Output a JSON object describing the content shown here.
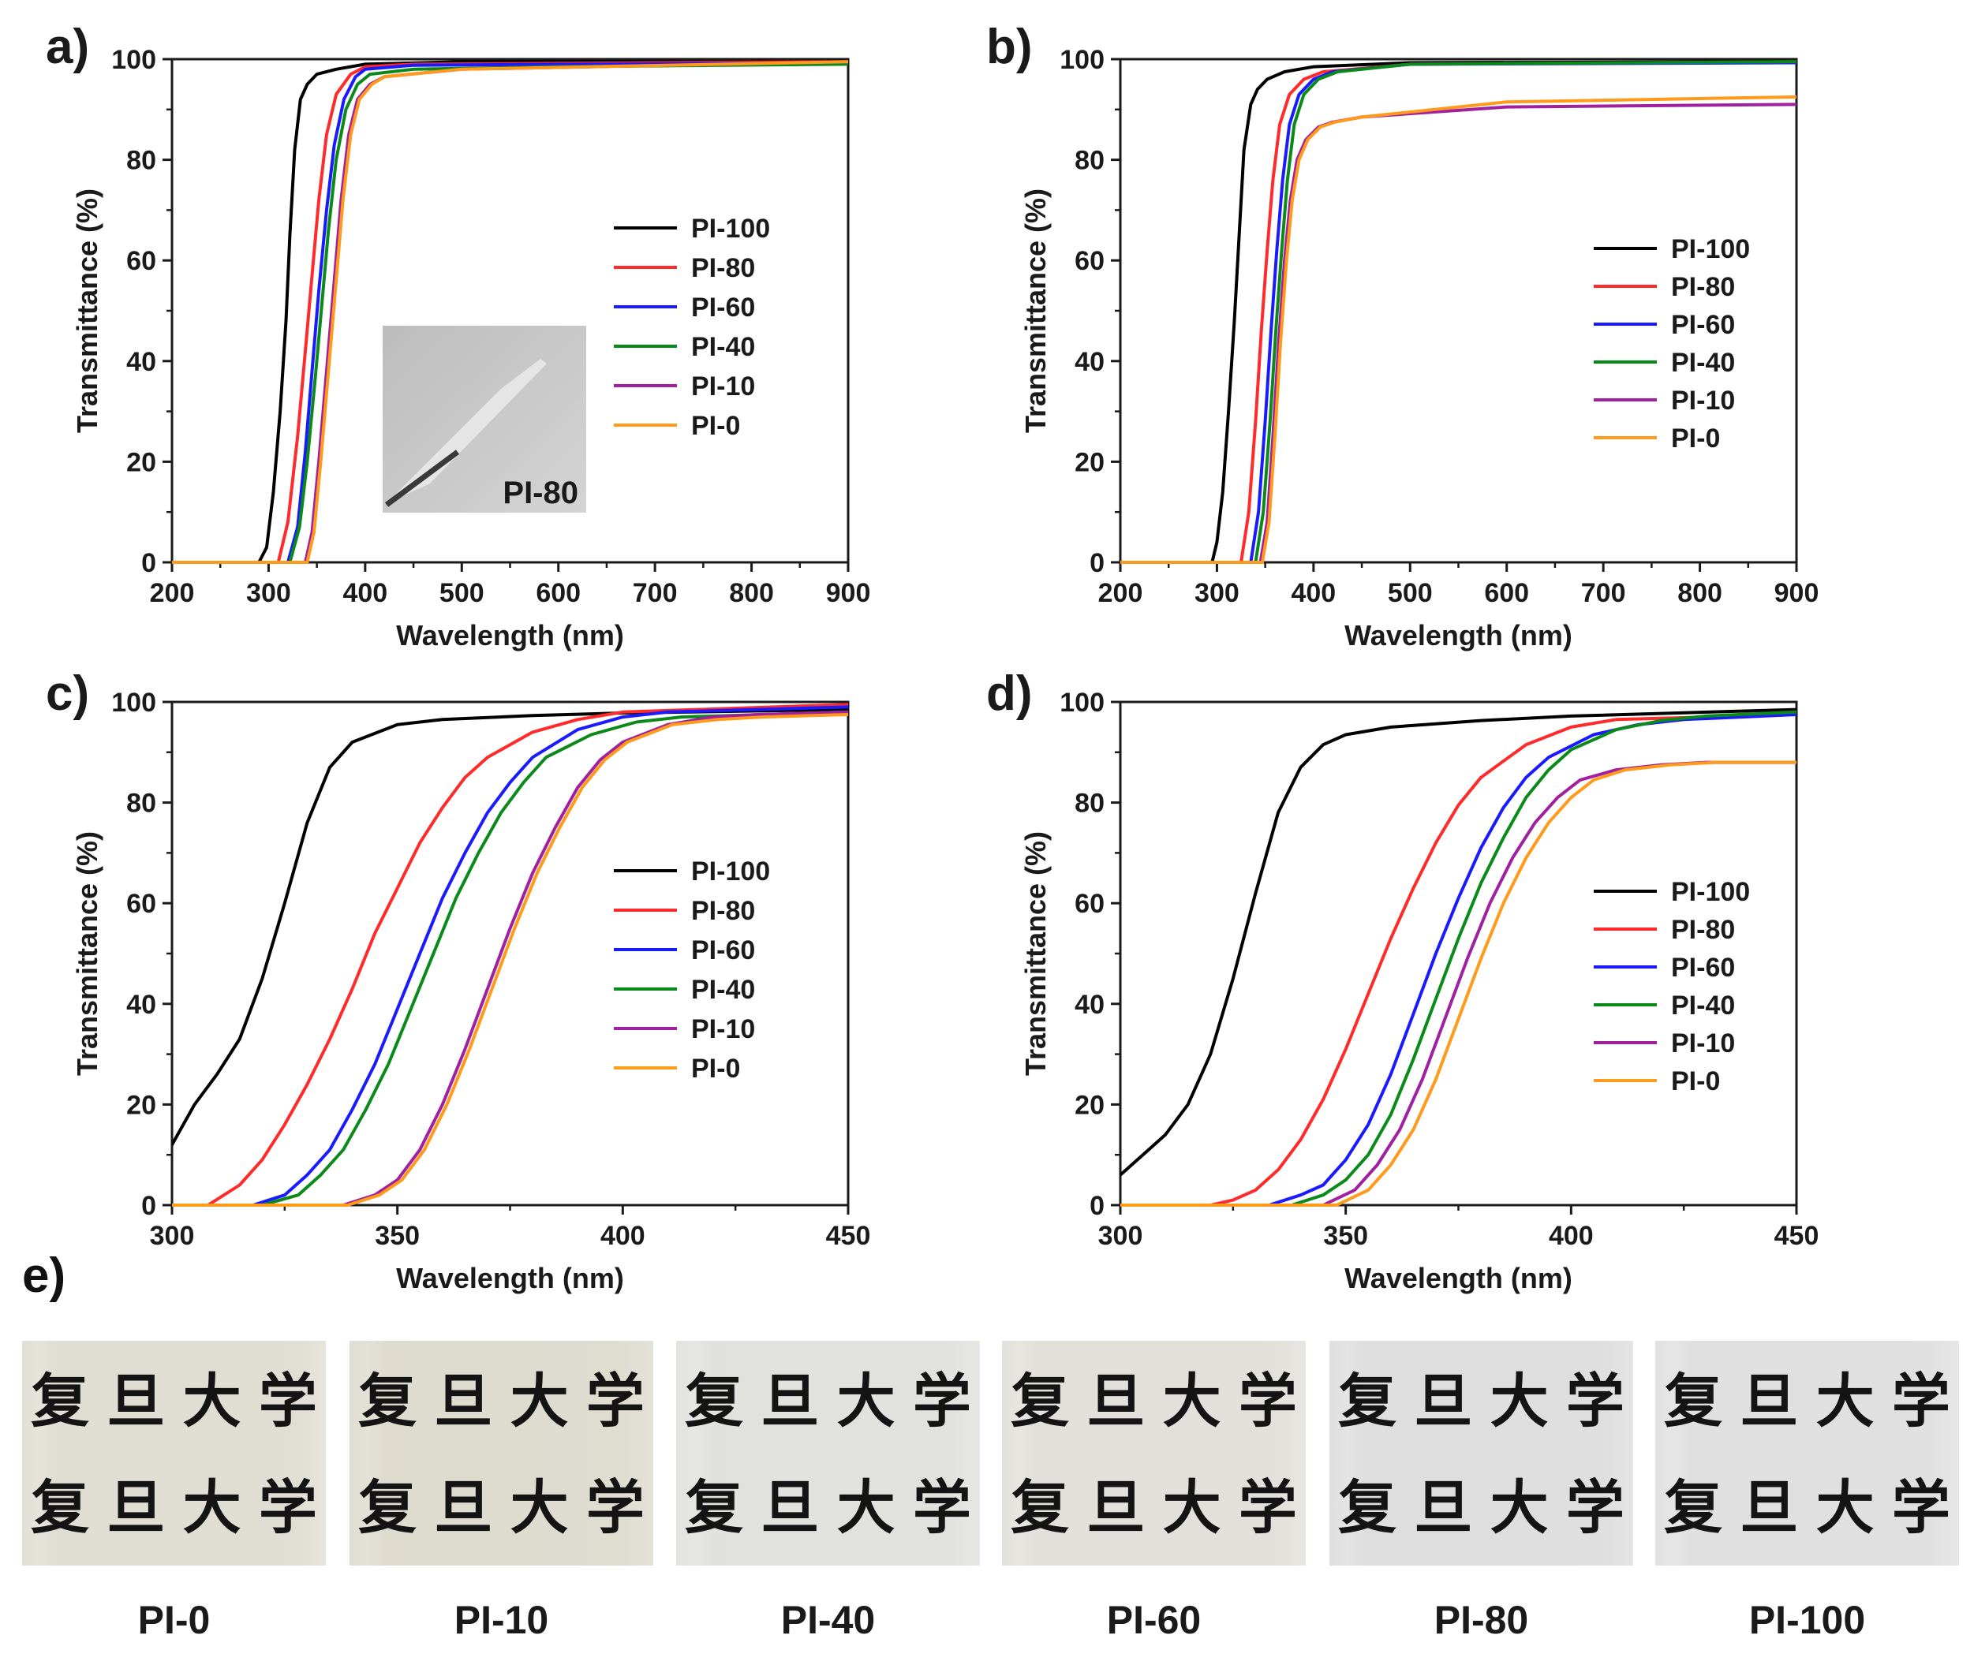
{
  "colors": {
    "PI-100": "#000000",
    "PI-80": "#ff2b2b",
    "PI-60": "#1a1aff",
    "PI-40": "#0a8a1a",
    "PI-10": "#a020a0",
    "PI-0": "#ff9a1a",
    "axis": "#1a1a1a"
  },
  "panel_e": {
    "label": "e)",
    "chars": [
      "复",
      "旦",
      "大",
      "学"
    ],
    "photos": [
      {
        "label": "PI-0",
        "tint": "#dedbd0"
      },
      {
        "label": "PI-10",
        "tint": "#dcd9cc"
      },
      {
        "label": "PI-40",
        "tint": "#dfdfdb"
      },
      {
        "label": "PI-60",
        "tint": "#e0ded8"
      },
      {
        "label": "PI-80",
        "tint": "#dcdcdc"
      },
      {
        "label": "PI-100",
        "tint": "#dedede"
      }
    ]
  },
  "chart_data": [
    {
      "type": "line",
      "panel": "a)",
      "xlabel": "Wavelength (nm)",
      "ylabel": "Transmittance (%)",
      "xlim": [
        200,
        900
      ],
      "ylim": [
        0,
        100
      ],
      "xticks": [
        200,
        300,
        400,
        500,
        600,
        700,
        800,
        900
      ],
      "yticks": [
        0,
        20,
        40,
        60,
        80,
        100
      ],
      "legend": "center-right",
      "inset_label": "PI-80",
      "series": [
        {
          "name": "PI-100",
          "x": [
            200,
            290,
            298,
            305,
            312,
            318,
            322,
            327,
            333,
            340,
            350,
            370,
            400,
            500,
            900
          ],
          "y": [
            0,
            0,
            3,
            14,
            30,
            48,
            65,
            82,
            92,
            95,
            97,
            98,
            99,
            99.5,
            99.5
          ]
        },
        {
          "name": "PI-80",
          "x": [
            200,
            310,
            320,
            330,
            338,
            345,
            352,
            360,
            370,
            385,
            400,
            450,
            900
          ],
          "y": [
            0,
            0,
            8,
            25,
            42,
            57,
            72,
            85,
            93,
            97,
            98.5,
            99,
            99.5
          ]
        },
        {
          "name": "PI-60",
          "x": [
            200,
            320,
            330,
            338,
            345,
            352,
            360,
            368,
            378,
            390,
            400,
            450,
            900
          ],
          "y": [
            0,
            0,
            7,
            22,
            38,
            54,
            70,
            83,
            92,
            96.5,
            98,
            98.8,
            99.3
          ]
        },
        {
          "name": "PI-40",
          "x": [
            200,
            322,
            332,
            340,
            348,
            355,
            362,
            370,
            380,
            392,
            405,
            450,
            600,
            900
          ],
          "y": [
            0,
            0,
            7,
            20,
            36,
            51,
            66,
            80,
            90,
            95,
            97,
            98,
            98.5,
            99
          ]
        },
        {
          "name": "PI-10",
          "x": [
            200,
            338,
            345,
            352,
            360,
            368,
            375,
            383,
            392,
            405,
            420,
            500,
            900
          ],
          "y": [
            0,
            0,
            6,
            20,
            38,
            56,
            72,
            85,
            92,
            95,
            96.5,
            98,
            99.5
          ]
        },
        {
          "name": "PI-0",
          "x": [
            200,
            340,
            347,
            354,
            362,
            370,
            377,
            385,
            394,
            407,
            420,
            500,
            900
          ],
          "y": [
            0,
            0,
            6,
            20,
            38,
            56,
            72,
            85,
            92,
            95,
            96.5,
            98,
            99.5
          ]
        }
      ]
    },
    {
      "type": "line",
      "panel": "b)",
      "xlabel": "Wavelength (nm)",
      "ylabel": "Transmittance (%)",
      "xlim": [
        200,
        900
      ],
      "ylim": [
        0,
        100
      ],
      "xticks": [
        200,
        300,
        400,
        500,
        600,
        700,
        800,
        900
      ],
      "yticks": [
        0,
        20,
        40,
        60,
        80,
        100
      ],
      "legend": "center-right",
      "series": [
        {
          "name": "PI-100",
          "x": [
            200,
            295,
            300,
            306,
            312,
            318,
            323,
            328,
            335,
            342,
            352,
            370,
            400,
            500,
            900
          ],
          "y": [
            0,
            0,
            4,
            14,
            30,
            48,
            65,
            82,
            91,
            94,
            96,
            97.5,
            98.5,
            99.3,
            99.5
          ]
        },
        {
          "name": "PI-80",
          "x": [
            200,
            325,
            333,
            340,
            346,
            352,
            358,
            365,
            375,
            390,
            410,
            500,
            900
          ],
          "y": [
            0,
            0,
            10,
            28,
            46,
            62,
            76,
            87,
            93,
            96,
            97.5,
            99,
            99.5
          ]
        },
        {
          "name": "PI-60",
          "x": [
            200,
            335,
            343,
            350,
            356,
            362,
            368,
            375,
            385,
            400,
            420,
            500,
            900
          ],
          "y": [
            0,
            0,
            10,
            28,
            46,
            62,
            76,
            87,
            93,
            96,
            97.5,
            99,
            99.3
          ]
        },
        {
          "name": "PI-40",
          "x": [
            200,
            340,
            348,
            355,
            361,
            367,
            373,
            380,
            390,
            405,
            425,
            500,
            900
          ],
          "y": [
            0,
            0,
            10,
            28,
            46,
            62,
            76,
            87,
            93,
            96,
            97.5,
            99,
            99.5
          ]
        },
        {
          "name": "PI-10",
          "x": [
            200,
            345,
            352,
            358,
            364,
            370,
            376,
            383,
            392,
            405,
            420,
            450,
            600,
            900
          ],
          "y": [
            0,
            0,
            8,
            25,
            44,
            60,
            72,
            80,
            84,
            86.5,
            87.5,
            88.5,
            90.5,
            91
          ]
        },
        {
          "name": "PI-0",
          "x": [
            200,
            347,
            354,
            360,
            366,
            372,
            378,
            385,
            394,
            407,
            422,
            450,
            600,
            900
          ],
          "y": [
            0,
            0,
            8,
            25,
            44,
            60,
            72,
            80,
            84,
            86.5,
            87.5,
            88.5,
            91.5,
            92.5
          ]
        }
      ]
    },
    {
      "type": "line",
      "panel": "c)",
      "xlabel": "Wavelength (nm)",
      "ylabel": "Transmittance (%)",
      "xlim": [
        300,
        450
      ],
      "ylim": [
        0,
        100
      ],
      "xticks": [
        300,
        350,
        400,
        450
      ],
      "yticks": [
        0,
        20,
        40,
        60,
        80,
        100
      ],
      "legend": "center-right",
      "series": [
        {
          "name": "PI-100",
          "x": [
            300,
            305,
            310,
            315,
            320,
            325,
            330,
            335,
            340,
            350,
            360,
            380,
            400,
            450
          ],
          "y": [
            12,
            20,
            26,
            33,
            45,
            60,
            76,
            87,
            92,
            95.5,
            96.5,
            97.3,
            97.8,
            98.5
          ]
        },
        {
          "name": "PI-80",
          "x": [
            300,
            308,
            315,
            320,
            325,
            330,
            335,
            340,
            345,
            350,
            355,
            360,
            365,
            370,
            380,
            390,
            400,
            450
          ],
          "y": [
            0,
            0,
            4,
            9,
            16,
            24,
            33,
            43,
            54,
            63,
            72,
            79,
            85,
            89,
            94,
            96.5,
            98,
            99.5
          ]
        },
        {
          "name": "PI-60",
          "x": [
            300,
            318,
            325,
            330,
            335,
            340,
            345,
            350,
            355,
            360,
            365,
            370,
            375,
            380,
            390,
            400,
            410,
            450
          ],
          "y": [
            0,
            0,
            2,
            6,
            11,
            19,
            28,
            39,
            50,
            61,
            70,
            78,
            84,
            89,
            94.5,
            97,
            98,
            99
          ]
        },
        {
          "name": "PI-40",
          "x": [
            300,
            320,
            328,
            333,
            338,
            343,
            348,
            353,
            358,
            363,
            368,
            373,
            378,
            383,
            393,
            403,
            413,
            450
          ],
          "y": [
            0,
            0,
            2,
            6,
            11,
            19,
            28,
            39,
            50,
            61,
            70,
            78,
            84,
            89,
            93.5,
            96,
            97,
            98
          ]
        },
        {
          "name": "PI-10",
          "x": [
            300,
            338,
            345,
            350,
            355,
            360,
            365,
            370,
            375,
            380,
            385,
            390,
            395,
            400,
            410,
            420,
            430,
            450
          ],
          "y": [
            0,
            0,
            2,
            5,
            11,
            20,
            31,
            43,
            55,
            66,
            75,
            83,
            88.5,
            92,
            95.5,
            97,
            97.5,
            98
          ]
        },
        {
          "name": "PI-0",
          "x": [
            300,
            339,
            346,
            351,
            356,
            361,
            366,
            371,
            376,
            381,
            386,
            391,
            396,
            401,
            411,
            421,
            431,
            450
          ],
          "y": [
            0,
            0,
            2,
            5,
            11,
            20,
            31,
            43,
            55,
            66,
            75,
            83,
            88.5,
            92,
            95.5,
            96.5,
            97,
            97.5
          ]
        }
      ]
    },
    {
      "type": "line",
      "panel": "d)",
      "xlabel": "Wavelength (nm)",
      "ylabel": "Transmittance (%)",
      "xlim": [
        300,
        450
      ],
      "ylim": [
        0,
        100
      ],
      "xticks": [
        300,
        350,
        400,
        450
      ],
      "yticks": [
        0,
        20,
        40,
        60,
        80,
        100
      ],
      "legend": "center-right",
      "series": [
        {
          "name": "PI-100",
          "x": [
            300,
            305,
            310,
            315,
            320,
            325,
            330,
            335,
            340,
            345,
            350,
            360,
            380,
            400,
            450
          ],
          "y": [
            6,
            10,
            14,
            20,
            30,
            45,
            62,
            78,
            87,
            91.5,
            93.5,
            95,
            96.3,
            97.2,
            98.5
          ]
        },
        {
          "name": "PI-80",
          "x": [
            300,
            320,
            325,
            330,
            335,
            340,
            345,
            350,
            355,
            360,
            365,
            370,
            375,
            380,
            390,
            400,
            410,
            450
          ],
          "y": [
            0,
            0,
            1,
            3,
            7,
            13,
            21,
            31,
            42,
            53,
            63,
            72,
            79.5,
            85,
            91.5,
            95,
            96.5,
            97.5
          ]
        },
        {
          "name": "PI-60",
          "x": [
            300,
            333,
            340,
            345,
            350,
            355,
            360,
            365,
            370,
            375,
            380,
            385,
            390,
            395,
            405,
            415,
            425,
            450
          ],
          "y": [
            0,
            0,
            2,
            4,
            9,
            16,
            26,
            38,
            50,
            61,
            71,
            79,
            85,
            89,
            93.5,
            95.5,
            96.5,
            97.5
          ]
        },
        {
          "name": "PI-40",
          "x": [
            300,
            338,
            345,
            350,
            355,
            360,
            365,
            370,
            375,
            380,
            385,
            390,
            395,
            400,
            410,
            420,
            430,
            450
          ],
          "y": [
            0,
            0,
            2,
            5,
            10,
            18,
            29,
            41,
            53,
            64,
            73,
            81,
            86.5,
            90.5,
            94.5,
            96.3,
            97.2,
            98
          ]
        },
        {
          "name": "PI-10",
          "x": [
            300,
            345,
            352,
            357,
            362,
            367,
            372,
            377,
            382,
            387,
            392,
            397,
            402,
            410,
            420,
            430,
            450
          ],
          "y": [
            0,
            0,
            3,
            8,
            15,
            25,
            37,
            49,
            60,
            69,
            76,
            81,
            84.5,
            86.5,
            87.5,
            88,
            88
          ]
        },
        {
          "name": "PI-0",
          "x": [
            300,
            348,
            355,
            360,
            365,
            370,
            375,
            380,
            385,
            390,
            395,
            400,
            405,
            412,
            422,
            432,
            450
          ],
          "y": [
            0,
            0,
            3,
            8,
            15,
            25,
            37,
            49,
            60,
            69,
            76,
            81,
            84.5,
            86.5,
            87.5,
            88,
            88
          ]
        }
      ]
    }
  ]
}
